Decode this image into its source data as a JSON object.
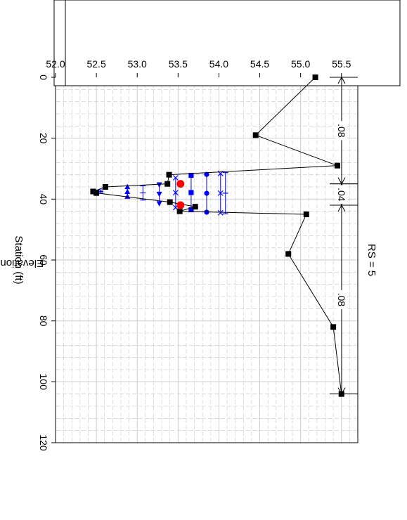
{
  "chart_data": {
    "type": "line",
    "orientation": "rotated-90-clockwise",
    "title": "RS = 5",
    "xlabel": "Station (ft)",
    "ylabel": "Elevation (ft)",
    "xlim": [
      0,
      120
    ],
    "ylim": [
      52.0,
      55.7
    ],
    "x_ticks": [
      "0",
      "20",
      "40",
      "60",
      "80",
      "100",
      "120"
    ],
    "y_ticks": [
      "52.0",
      "52.5",
      "53.0",
      "53.5",
      "54.0",
      "54.5",
      "55.0",
      "55.5"
    ],
    "grid": true,
    "ground": {
      "x": [
        0,
        19,
        29,
        32,
        35,
        36,
        37.5,
        38,
        41,
        42.5,
        44,
        45,
        58,
        82,
        104
      ],
      "y": [
        55.18,
        54.45,
        55.45,
        53.39,
        53.37,
        52.61,
        52.46,
        52.5,
        53.4,
        53.71,
        53.52,
        55.07,
        54.85,
        55.4,
        55.5
      ]
    },
    "mannings": [
      {
        "label": ".08",
        "x_start": 0,
        "x_end": 35
      },
      {
        "label": ".04",
        "x_start": 35,
        "x_end": 42
      },
      {
        "label": ".08",
        "x_start": 42,
        "x_end": 104
      }
    ],
    "bank_stations": [
      {
        "x": 35,
        "y": 53.53
      },
      {
        "x": 42,
        "y": 53.53
      }
    ],
    "water_surfaces": [
      {
        "marker": "bar",
        "y": 54.08,
        "x_start": 31.3,
        "x_end": 44.8
      },
      {
        "marker": "x",
        "y": 54.02,
        "x_start": 31.6,
        "x_end": 44.5
      },
      {
        "marker": "circle",
        "y": 53.85,
        "x_start": 31.9,
        "x_end": 44.3
      },
      {
        "marker": "square",
        "y": 53.66,
        "x_start": 32.2,
        "x_end": 43.5
      },
      {
        "marker": "x",
        "y": 53.47,
        "x_start": 33.0,
        "x_end": 42.8
      },
      {
        "marker": "triangle-right",
        "y": 53.27,
        "x_start": 35.3,
        "x_end": 41.5
      },
      {
        "marker": "bar",
        "y": 53.07,
        "x_start": 35.6,
        "x_end": 40.3
      },
      {
        "marker": "triangle-left",
        "y": 52.88,
        "x_start": 35.9,
        "x_end": 39.1
      },
      {
        "marker": "bar",
        "y": 52.55,
        "x_start": 37.0,
        "x_end": 38.0
      }
    ],
    "colors": {
      "ground": "#000000",
      "water": "#0000ff",
      "bank": "#ff0000",
      "grid": "#c8c8c8"
    }
  }
}
